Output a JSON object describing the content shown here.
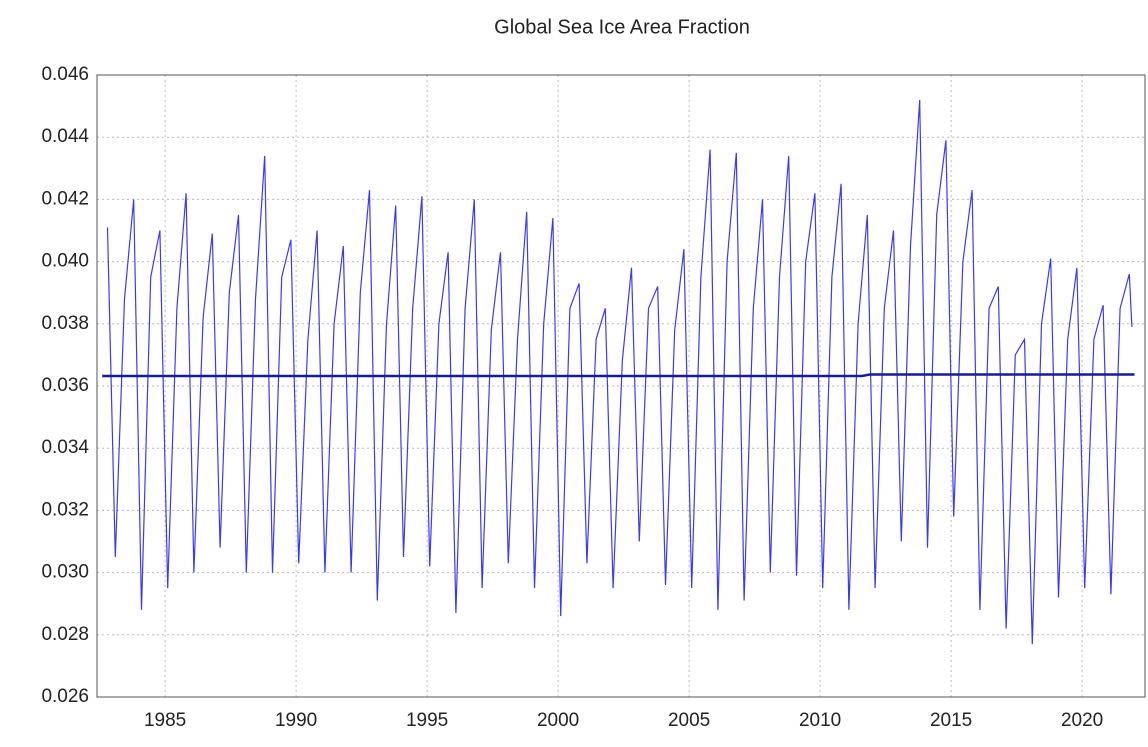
{
  "chart_data": {
    "type": "line",
    "title": "Global Sea Ice Area Fraction",
    "xlim": [
      1982.4,
      2022.4
    ],
    "ylim": [
      0.026,
      0.046
    ],
    "xticks": [
      1985,
      1990,
      1995,
      2000,
      2005,
      2010,
      2015,
      2020
    ],
    "yticks": [
      0.026,
      0.028,
      {
        "value": 0.03,
        "label": "0.030"
      },
      0.032,
      0.034,
      0.036,
      0.038,
      {
        "value": 0.04,
        "label": "0.040"
      },
      0.042,
      0.044,
      0.046
    ],
    "grid": true,
    "series": [
      {
        "color": "#3a3af5",
        "x": [
          1982.8,
          1983.1,
          1983.45,
          1983.8,
          1984.1,
          1984.45,
          1984.8,
          1985.1,
          1985.45,
          1985.8,
          1986.1,
          1986.45,
          1986.8,
          1987.1,
          1987.45,
          1987.8,
          1988.1,
          1988.45,
          1988.8,
          1989.1,
          1989.45,
          1989.8,
          1990.1,
          1990.45,
          1990.8,
          1991.1,
          1991.45,
          1991.8,
          1992.1,
          1992.45,
          1992.8,
          1993.1,
          1993.45,
          1993.8,
          1994.1,
          1994.45,
          1994.8,
          1995.1,
          1995.45,
          1995.8,
          1996.1,
          1996.45,
          1996.8,
          1997.1,
          1997.45,
          1997.8,
          1998.1,
          1998.45,
          1998.8,
          1999.1,
          1999.45,
          1999.8,
          2000.1,
          2000.45,
          2000.8,
          2001.1,
          2001.45,
          2001.8,
          2002.1,
          2002.45,
          2002.8,
          2003.1,
          2003.45,
          2003.8,
          2004.1,
          2004.45,
          2004.8,
          2005.1,
          2005.45,
          2005.8,
          2006.1,
          2006.45,
          2006.8,
          2007.1,
          2007.45,
          2007.8,
          2008.1,
          2008.45,
          2008.8,
          2009.1,
          2009.45,
          2009.8,
          2010.1,
          2010.45,
          2010.8,
          2011.1,
          2011.45,
          2011.8,
          2012.1,
          2012.45,
          2012.8,
          2013.1,
          2013.45,
          2013.8,
          2014.1,
          2014.45,
          2014.8,
          2015.1,
          2015.45,
          2015.8,
          2016.1,
          2016.45,
          2016.8,
          2017.1,
          2017.45,
          2017.8,
          2018.1,
          2018.45,
          2018.8,
          2019.1,
          2019.45,
          2019.8,
          2020.1,
          2020.45,
          2020.8,
          2021.1,
          2021.45,
          2021.8,
          2021.9
        ],
        "values": [
          0.0411,
          0.0305,
          0.0388,
          0.042,
          0.0288,
          0.0395,
          0.041,
          0.0295,
          0.0385,
          0.0422,
          0.03,
          0.0382,
          0.0409,
          0.0308,
          0.039,
          0.0415,
          0.03,
          0.0388,
          0.0434,
          0.03,
          0.0395,
          0.0407,
          0.0303,
          0.0375,
          0.041,
          0.03,
          0.038,
          0.0405,
          0.03,
          0.039,
          0.0423,
          0.0291,
          0.038,
          0.0418,
          0.0305,
          0.0385,
          0.0421,
          0.0302,
          0.038,
          0.0403,
          0.0287,
          0.0385,
          0.042,
          0.0295,
          0.0378,
          0.0403,
          0.0303,
          0.0375,
          0.0416,
          0.0295,
          0.038,
          0.0414,
          0.0286,
          0.0385,
          0.0393,
          0.0303,
          0.0375,
          0.0385,
          0.0295,
          0.0368,
          0.0398,
          0.031,
          0.0385,
          0.0392,
          0.0296,
          0.0378,
          0.0404,
          0.0295,
          0.0395,
          0.0436,
          0.0288,
          0.04,
          0.0435,
          0.0291,
          0.0385,
          0.042,
          0.03,
          0.0395,
          0.0434,
          0.0299,
          0.04,
          0.0422,
          0.0295,
          0.0395,
          0.0425,
          0.0288,
          0.038,
          0.0415,
          0.0295,
          0.0385,
          0.041,
          0.031,
          0.0405,
          0.0452,
          0.0308,
          0.0415,
          0.0439,
          0.0318,
          0.04,
          0.0423,
          0.0288,
          0.0385,
          0.0392,
          0.0282,
          0.037,
          0.0375,
          0.0277,
          0.038,
          0.0401,
          0.0292,
          0.0375,
          0.0398,
          0.0295,
          0.0375,
          0.0386,
          0.0293,
          0.0385,
          0.0396,
          0.0379
        ]
      },
      {
        "color": "#1c1c8a",
        "x": [
          1982.6,
          2011.6,
          2011.9,
          2022.0
        ],
        "values": [
          0.03632,
          0.03632,
          0.03637,
          0.03637
        ]
      }
    ]
  }
}
